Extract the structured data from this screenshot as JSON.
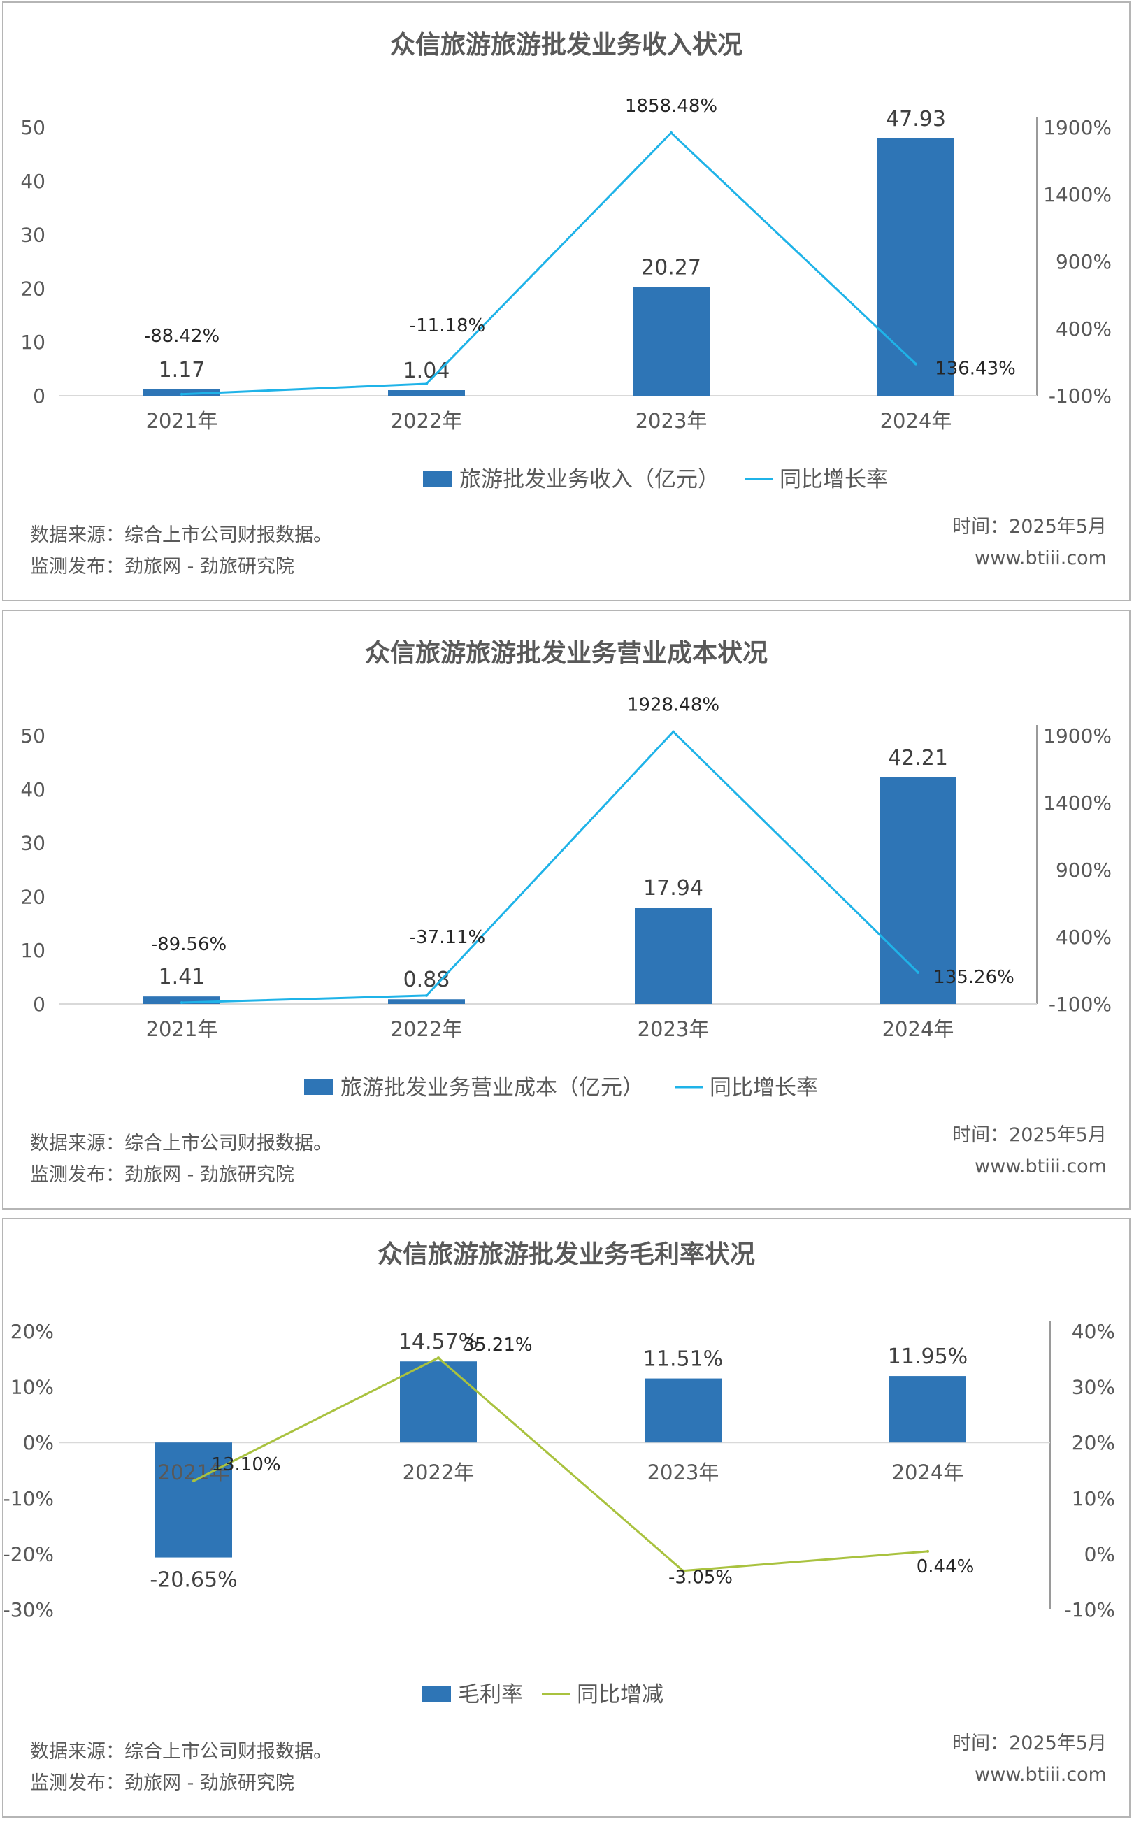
{
  "charts": [
    {
      "title": "众信旅游旅游批发业务收入状况",
      "type": "bar",
      "categories": [
        "2021年",
        "2022年",
        "2023年",
        "2024年"
      ],
      "bar_series": {
        "name": "旅游批发业务收入（亿元）",
        "values": [
          1.17,
          1.04,
          20.27,
          47.93
        ],
        "labels": [
          "1.17",
          "1.04",
          "20.27",
          "47.93"
        ],
        "color": "#2e75b6"
      },
      "line_series": {
        "name": "同比增长率",
        "values": [
          -88.42,
          -11.18,
          1858.48,
          136.43
        ],
        "labels": [
          "-88.42%",
          "-11.18%",
          "1858.48%",
          "136.43%"
        ],
        "color": "#1fb3e8"
      },
      "left_axis": {
        "min": 0,
        "max": 50,
        "ticks": [
          "0",
          "10",
          "20",
          "30",
          "40",
          "50"
        ]
      },
      "right_axis": {
        "min": -100,
        "max": 1900,
        "ticks": [
          "-100%",
          "400%",
          "900%",
          "1400%",
          "1900%"
        ]
      },
      "source": "数据来源：综合上市公司财报数据。",
      "publisher": "监测发布：劲旅网 - 劲旅研究院",
      "date": "时间：2025年5月",
      "website": "www.btiii.com"
    },
    {
      "title": "众信旅游旅游批发业务营业成本状况",
      "type": "bar",
      "categories": [
        "2021年",
        "2022年",
        "2023年",
        "2024年"
      ],
      "bar_series": {
        "name": "旅游批发业务营业成本（亿元）",
        "values": [
          1.41,
          0.88,
          17.94,
          42.21
        ],
        "labels": [
          "1.41",
          "0.88",
          "17.94",
          "42.21"
        ],
        "color": "#2e75b6"
      },
      "line_series": {
        "name": "同比增长率",
        "values": [
          -89.56,
          -37.11,
          1928.48,
          135.26
        ],
        "labels": [
          "-89.56%",
          "-37.11%",
          "1928.48%",
          "135.26%"
        ],
        "color": "#1fb3e8"
      },
      "left_axis": {
        "min": 0,
        "max": 50,
        "ticks": [
          "0",
          "10",
          "20",
          "30",
          "40",
          "50"
        ]
      },
      "right_axis": {
        "min": -100,
        "max": 1900,
        "ticks": [
          "-100%",
          "400%",
          "900%",
          "1400%",
          "1900%"
        ]
      },
      "source": "数据来源：综合上市公司财报数据。",
      "publisher": "监测发布：劲旅网 - 劲旅研究院",
      "date": "时间：2025年5月",
      "website": "www.btiii.com"
    },
    {
      "title": "众信旅游旅游批发业务毛利率状况",
      "type": "bar",
      "categories": [
        "2021年",
        "2022年",
        "2023年",
        "2024年"
      ],
      "bar_series": {
        "name": "毛利率",
        "values": [
          -20.65,
          14.57,
          11.51,
          11.95
        ],
        "labels": [
          "-20.65%",
          "14.57%",
          "11.51%",
          "11.95%"
        ],
        "color": "#2e75b6"
      },
      "line_series": {
        "name": "同比增减",
        "values": [
          13.1,
          35.21,
          -3.05,
          0.44
        ],
        "labels": [
          "13.10%",
          "35.21%",
          "-3.05%",
          "0.44%"
        ],
        "color": "#a9c23f"
      },
      "left_axis": {
        "min": -30,
        "max": 20,
        "ticks": [
          "-30%",
          "-20%",
          "-10%",
          "0%",
          "10%",
          "20%"
        ]
      },
      "right_axis": {
        "min": -10,
        "max": 40,
        "ticks": [
          "-10%",
          "0%",
          "10%",
          "20%",
          "30%",
          "40%"
        ]
      },
      "source": "数据来源：综合上市公司财报数据。",
      "publisher": "监测发布：劲旅网 - 劲旅研究院",
      "date": "时间：2025年5月",
      "website": "www.btiii.com"
    }
  ],
  "chart_data": [
    {
      "type": "bar",
      "title": "众信旅游旅游批发业务收入状况",
      "categories": [
        "2021年",
        "2022年",
        "2023年",
        "2024年"
      ],
      "series": [
        {
          "name": "旅游批发业务收入（亿元）",
          "type": "bar",
          "axis": "left",
          "values": [
            1.17,
            1.04,
            20.27,
            47.93
          ]
        },
        {
          "name": "同比增长率",
          "type": "line",
          "axis": "right",
          "values": [
            -88.42,
            -11.18,
            1858.48,
            136.43
          ]
        }
      ],
      "ylim_left": [
        0,
        50
      ],
      "ylim_right": [
        -100,
        1900
      ],
      "legend": "bottom",
      "grid": false
    },
    {
      "type": "bar",
      "title": "众信旅游旅游批发业务营业成本状况",
      "categories": [
        "2021年",
        "2022年",
        "2023年",
        "2024年"
      ],
      "series": [
        {
          "name": "旅游批发业务营业成本（亿元）",
          "type": "bar",
          "axis": "left",
          "values": [
            1.41,
            0.88,
            17.94,
            42.21
          ]
        },
        {
          "name": "同比增长率",
          "type": "line",
          "axis": "right",
          "values": [
            -89.56,
            -37.11,
            1928.48,
            135.26
          ]
        }
      ],
      "ylim_left": [
        0,
        50
      ],
      "ylim_right": [
        -100,
        1900
      ],
      "legend": "bottom",
      "grid": false
    },
    {
      "type": "bar",
      "title": "众信旅游旅游批发业务毛利率状况",
      "categories": [
        "2021年",
        "2022年",
        "2023年",
        "2024年"
      ],
      "series": [
        {
          "name": "毛利率",
          "type": "bar",
          "axis": "left",
          "values": [
            -20.65,
            14.57,
            11.51,
            11.95
          ]
        },
        {
          "name": "同比增减",
          "type": "line",
          "axis": "right",
          "values": [
            13.1,
            35.21,
            -3.05,
            0.44
          ]
        }
      ],
      "ylim_left": [
        -30,
        20
      ],
      "ylim_right": [
        -10,
        40
      ],
      "legend": "bottom",
      "grid": false
    }
  ]
}
